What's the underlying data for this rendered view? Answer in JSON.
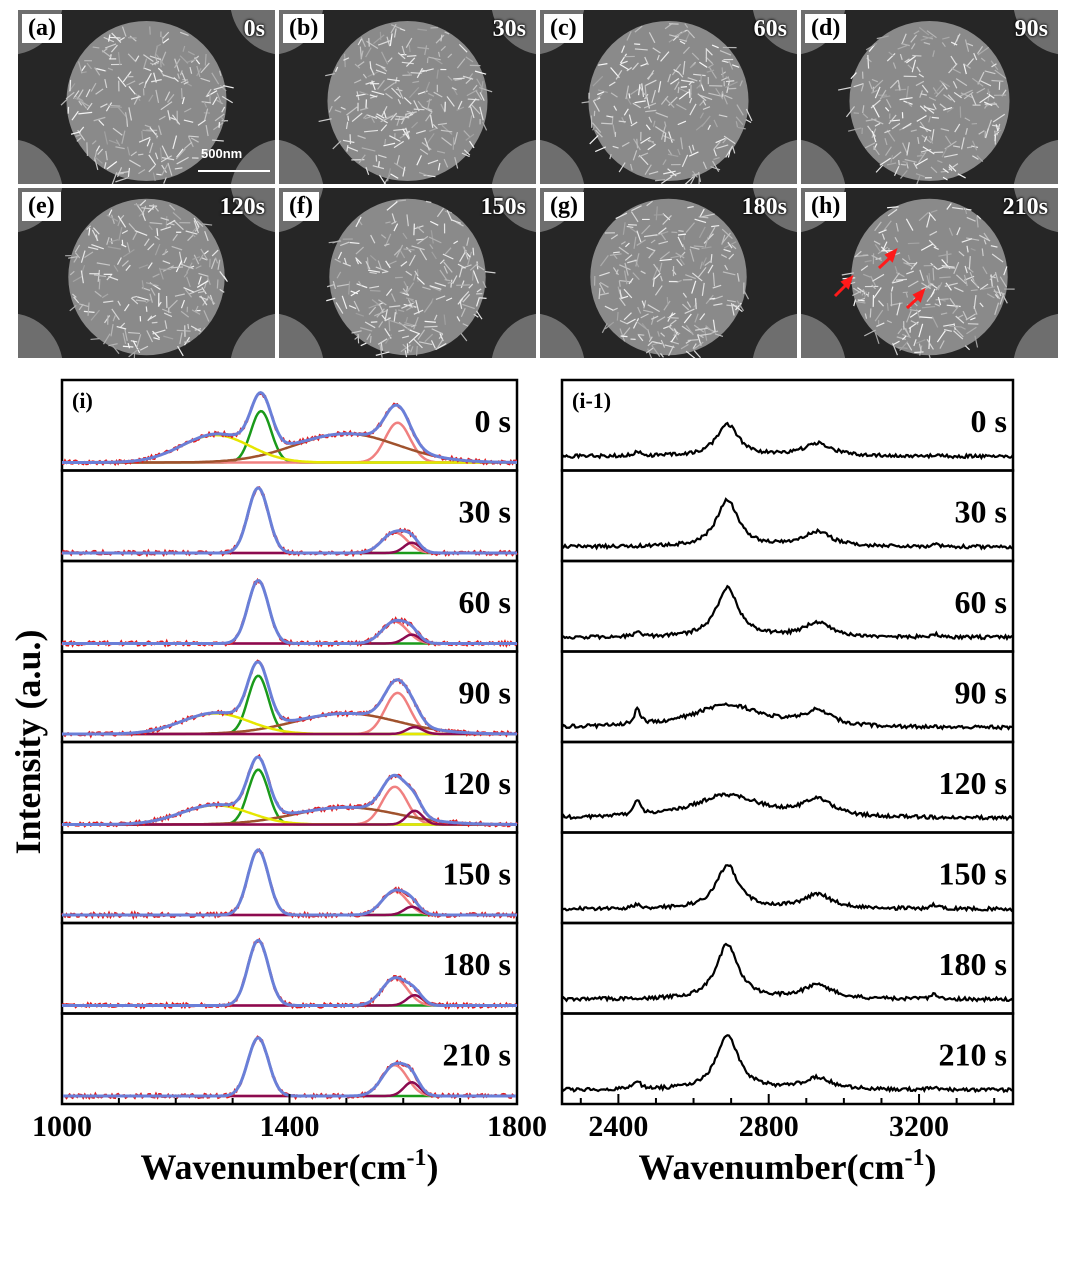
{
  "sem_panels": [
    {
      "label": "(a)",
      "time": "0s",
      "scale": "500nm"
    },
    {
      "label": "(b)",
      "time": "30s"
    },
    {
      "label": "(c)",
      "time": "60s"
    },
    {
      "label": "(d)",
      "time": "90s"
    },
    {
      "label": "(e)",
      "time": "120s"
    },
    {
      "label": "(f)",
      "time": "150s"
    },
    {
      "label": "(g)",
      "time": "180s"
    },
    {
      "label": "(h)",
      "time": "210s"
    }
  ],
  "chart_data": [
    {
      "type": "line",
      "panel_label": "(i)",
      "xlabel": "Wavenumber(cm-1)",
      "ylabel": "Intensity (a.u.)",
      "xlim": [
        1000,
        1800
      ],
      "xticks": [
        1000,
        1400,
        1800
      ],
      "colors": {
        "measured": "#e31a1c",
        "fit_sum": "#6a7fd8",
        "D": "#1a9a1a",
        "G": "#f08080",
        "D_prime": "#8b0a50",
        "D3": "#a0522d",
        "D4": "#e6e600"
      },
      "series": [
        {
          "name": "0 s",
          "peaks": [
            {
              "center": 1350,
              "height": 0.75
            },
            {
              "center": 1590,
              "height": 0.58
            },
            {
              "center": 1500,
              "height": 0.42
            },
            {
              "center": 1270,
              "height": 0.4
            }
          ]
        },
        {
          "name": "30 s",
          "peaks": [
            {
              "center": 1345,
              "height": 0.95
            },
            {
              "center": 1585,
              "height": 0.3
            },
            {
              "center": 1615,
              "height": 0.15
            }
          ]
        },
        {
          "name": "60 s",
          "peaks": [
            {
              "center": 1345,
              "height": 0.92
            },
            {
              "center": 1585,
              "height": 0.32
            },
            {
              "center": 1615,
              "height": 0.13
            }
          ]
        },
        {
          "name": "90 s",
          "peaks": [
            {
              "center": 1345,
              "height": 0.85
            },
            {
              "center": 1590,
              "height": 0.6
            },
            {
              "center": 1500,
              "height": 0.3
            },
            {
              "center": 1270,
              "height": 0.3
            },
            {
              "center": 1620,
              "height": 0.1
            }
          ]
        },
        {
          "name": "120 s",
          "peaks": [
            {
              "center": 1345,
              "height": 0.8
            },
            {
              "center": 1585,
              "height": 0.55
            },
            {
              "center": 1500,
              "height": 0.25
            },
            {
              "center": 1270,
              "height": 0.28
            },
            {
              "center": 1620,
              "height": 0.2
            }
          ]
        },
        {
          "name": "150 s",
          "peaks": [
            {
              "center": 1345,
              "height": 0.95
            },
            {
              "center": 1585,
              "height": 0.35
            },
            {
              "center": 1615,
              "height": 0.12
            }
          ]
        },
        {
          "name": "180 s",
          "peaks": [
            {
              "center": 1345,
              "height": 0.95
            },
            {
              "center": 1585,
              "height": 0.4
            },
            {
              "center": 1620,
              "height": 0.15
            }
          ]
        },
        {
          "name": "210 s",
          "peaks": [
            {
              "center": 1345,
              "height": 0.85
            },
            {
              "center": 1585,
              "height": 0.45
            },
            {
              "center": 1615,
              "height": 0.2
            }
          ]
        }
      ]
    },
    {
      "type": "line",
      "panel_label": "(i-1)",
      "xlabel": "Wavenumber(cm-1)",
      "xlim": [
        2250,
        3450
      ],
      "xticks": [
        2400,
        2800,
        3200
      ],
      "colors": {
        "line": "#000000"
      },
      "series": [
        {
          "name": "0 s",
          "peaks": [
            {
              "center": 2690,
              "height": 0.55
            },
            {
              "center": 2930,
              "height": 0.22
            },
            {
              "center": 2450,
              "height": 0.08
            }
          ]
        },
        {
          "name": "30 s",
          "peaks": [
            {
              "center": 2690,
              "height": 0.8
            },
            {
              "center": 2930,
              "height": 0.25
            },
            {
              "center": 3240,
              "height": 0.06
            }
          ]
        },
        {
          "name": "60 s",
          "peaks": [
            {
              "center": 2690,
              "height": 0.85
            },
            {
              "center": 2930,
              "height": 0.25
            },
            {
              "center": 2450,
              "height": 0.08
            },
            {
              "center": 3240,
              "height": 0.06
            }
          ]
        },
        {
          "name": "90 s",
          "peaks": [
            {
              "center": 2690,
              "height": 0.4
            },
            {
              "center": 2930,
              "height": 0.25
            },
            {
              "center": 2450,
              "height": 0.25
            }
          ]
        },
        {
          "name": "120 s",
          "peaks": [
            {
              "center": 2690,
              "height": 0.4
            },
            {
              "center": 2930,
              "height": 0.3
            },
            {
              "center": 2450,
              "height": 0.25
            }
          ]
        },
        {
          "name": "150 s",
          "peaks": [
            {
              "center": 2690,
              "height": 0.75
            },
            {
              "center": 2930,
              "height": 0.25
            },
            {
              "center": 2450,
              "height": 0.07
            },
            {
              "center": 3240,
              "height": 0.06
            }
          ]
        },
        {
          "name": "180 s",
          "peaks": [
            {
              "center": 2690,
              "height": 0.95
            },
            {
              "center": 2930,
              "height": 0.25
            },
            {
              "center": 3240,
              "height": 0.08
            }
          ]
        },
        {
          "name": "210 s",
          "peaks": [
            {
              "center": 2690,
              "height": 0.95
            },
            {
              "center": 2930,
              "height": 0.2
            },
            {
              "center": 2450,
              "height": 0.15
            },
            {
              "center": 3240,
              "height": 0.05
            }
          ]
        }
      ]
    }
  ]
}
